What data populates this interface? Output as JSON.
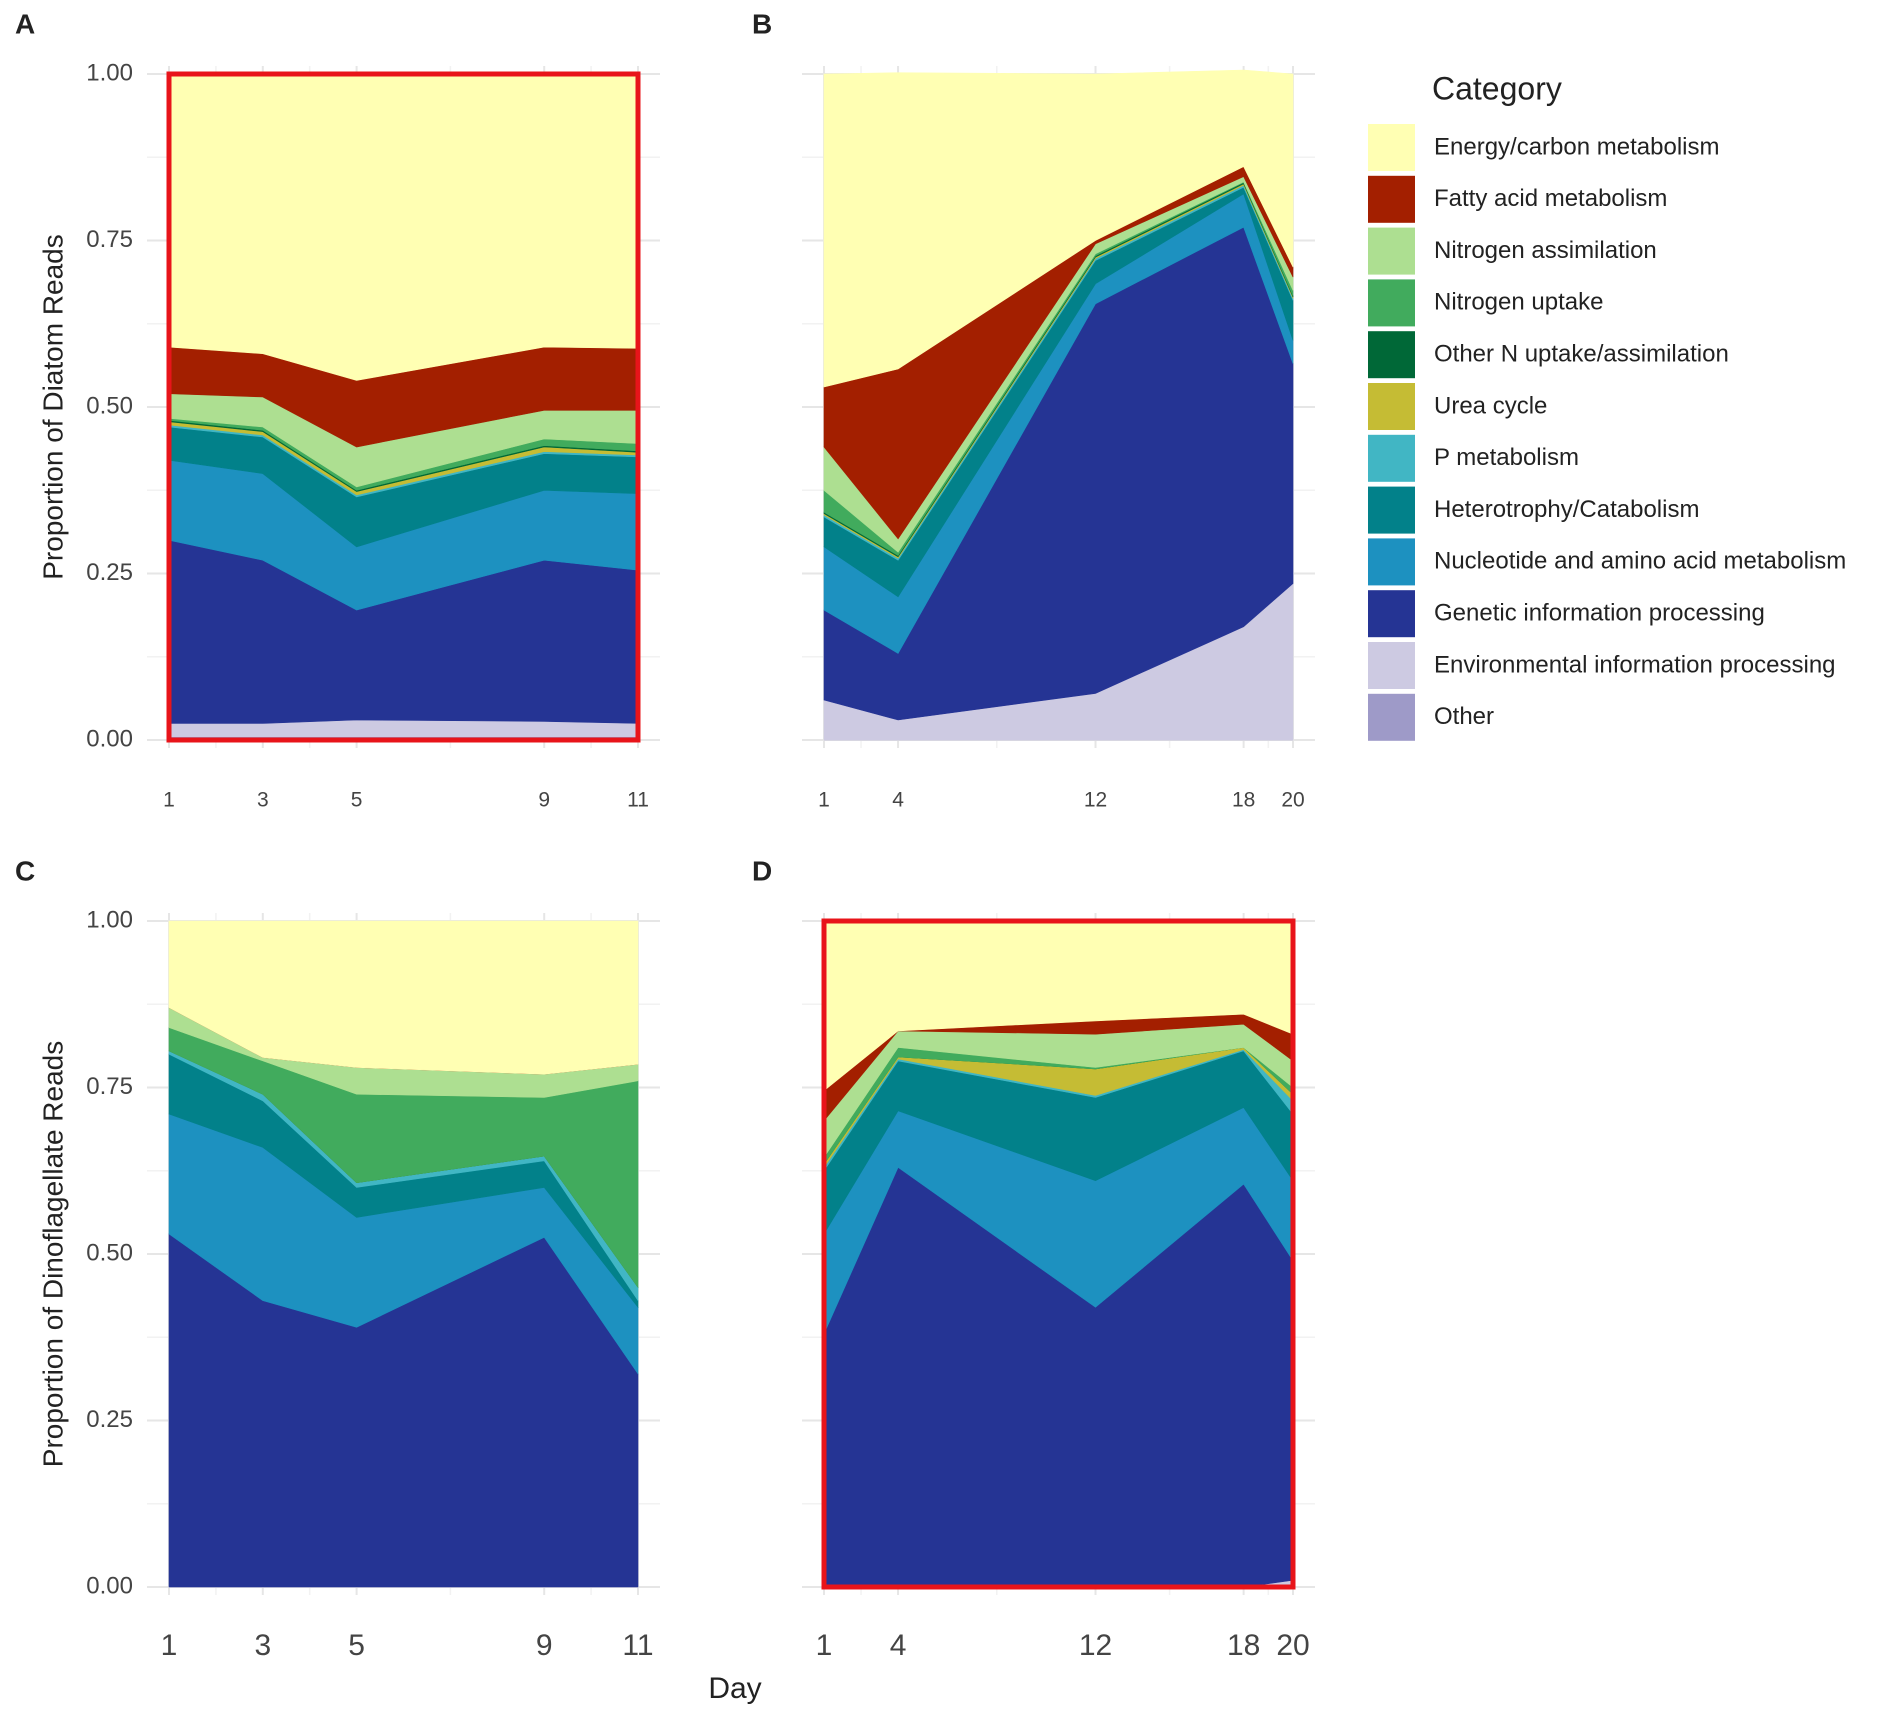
{
  "xlabel": "Day",
  "legend_title": "Category",
  "chart_data": [
    {
      "type": "area",
      "panel": "A",
      "ylabel": "Proportion of Diatom Reads",
      "x": [
        1,
        3,
        5,
        9,
        11
      ],
      "xlim": [
        1,
        11
      ],
      "xticks": [
        1,
        3,
        5,
        9,
        11
      ],
      "ylim": [
        0,
        1
      ],
      "yticks": [
        {
          "value": 0,
          "label": "0.00"
        },
        {
          "value": 0.25,
          "label": "0.25"
        },
        {
          "value": 0.5,
          "label": "0.50"
        },
        {
          "value": 0.75,
          "label": "0.75"
        },
        {
          "value": 1,
          "label": "1.00"
        }
      ],
      "show_yticklabels": true,
      "highlight": true,
      "highlight_color": "#e8141a",
      "grid": true,
      "series": [
        {
          "name": "Other",
          "color": "#9e9ac8",
          "values": [
            0.005,
            0.005,
            0.005,
            0.005,
            0.005
          ]
        },
        {
          "name": "Environmental information processing",
          "color": "#cdcae2",
          "values": [
            0.02,
            0.02,
            0.025,
            0.023,
            0.02
          ]
        },
        {
          "name": "Genetic information processing",
          "color": "#253494",
          "values": [
            0.275,
            0.245,
            0.165,
            0.242,
            0.23
          ]
        },
        {
          "name": "Nucleotide and amino acid metabolism",
          "color": "#1d91c0",
          "values": [
            0.12,
            0.13,
            0.095,
            0.105,
            0.115
          ]
        },
        {
          "name": "Heterotrophy/Catabolism",
          "color": "#02818a",
          "values": [
            0.05,
            0.055,
            0.075,
            0.055,
            0.055
          ]
        },
        {
          "name": "P metabolism",
          "color": "#41b6c4",
          "values": [
            0.003,
            0.003,
            0.003,
            0.003,
            0.003
          ]
        },
        {
          "name": "Urea cycle",
          "color": "#c5bc34",
          "values": [
            0.005,
            0.005,
            0.005,
            0.007,
            0.004
          ]
        },
        {
          "name": "Other N uptake/assimilation",
          "color": "#006837",
          "values": [
            0.002,
            0.002,
            0.002,
            0.002,
            0.002
          ]
        },
        {
          "name": "Nitrogen uptake",
          "color": "#41ab5d",
          "values": [
            0.003,
            0.005,
            0.005,
            0.01,
            0.011
          ]
        },
        {
          "name": "Nitrogen assimilation",
          "color": "#addf91",
          "values": [
            0.037,
            0.045,
            0.06,
            0.043,
            0.05
          ]
        },
        {
          "name": "Fatty acid metabolism",
          "color": "#a31f00",
          "values": [
            0.07,
            0.065,
            0.1,
            0.095,
            0.093
          ]
        },
        {
          "name": "Energy/carbon metabolism",
          "color": "#ffffb3",
          "values": [
            0.41,
            0.42,
            0.46,
            0.41,
            0.412
          ]
        }
      ]
    },
    {
      "type": "area",
      "panel": "B",
      "x": [
        1,
        4,
        12,
        18,
        20
      ],
      "xlim": [
        1,
        20
      ],
      "xticks": [
        1,
        4,
        12,
        18,
        20
      ],
      "ylim": [
        0,
        1
      ],
      "yticks": [
        0,
        0.25,
        0.5,
        0.75,
        1
      ],
      "show_yticklabels": false,
      "highlight": false,
      "grid": true,
      "series": [
        {
          "name": "Other",
          "color": "#9e9ac8",
          "values": [
            0,
            0,
            0,
            0,
            0
          ]
        },
        {
          "name": "Environmental information processing",
          "color": "#cdcae2",
          "values": [
            0.06,
            0.03,
            0.07,
            0.17,
            0.235
          ]
        },
        {
          "name": "Genetic information processing",
          "color": "#253494",
          "values": [
            0.135,
            0.1,
            0.585,
            0.6,
            0.33
          ]
        },
        {
          "name": "Nucleotide and amino acid metabolism",
          "color": "#1d91c0",
          "values": [
            0.095,
            0.085,
            0.03,
            0.05,
            0.035
          ]
        },
        {
          "name": "Heterotrophy/Catabolism",
          "color": "#02818a",
          "values": [
            0.045,
            0.055,
            0.035,
            0.01,
            0.06
          ]
        },
        {
          "name": "P metabolism",
          "color": "#41b6c4",
          "values": [
            0.003,
            0.003,
            0.003,
            0.003,
            0.003
          ]
        },
        {
          "name": "Urea cycle",
          "color": "#c5bc34",
          "values": [
            0.002,
            0.002,
            0.002,
            0.002,
            0.002
          ]
        },
        {
          "name": "Other N uptake/assimilation",
          "color": "#006837",
          "values": [
            0.002,
            0.002,
            0.002,
            0.002,
            0.002
          ]
        },
        {
          "name": "Nitrogen uptake",
          "color": "#41ab5d",
          "values": [
            0.033,
            0.005,
            0.003,
            0.001,
            0.008
          ]
        },
        {
          "name": "Nitrogen assimilation",
          "color": "#addf91",
          "values": [
            0.065,
            0.02,
            0.015,
            0.008,
            0.02
          ]
        },
        {
          "name": "Fatty acid metabolism",
          "color": "#a31f00",
          "values": [
            0.09,
            0.255,
            0.005,
            0.015,
            0.015
          ]
        },
        {
          "name": "Energy/carbon metabolism",
          "color": "#ffffb3",
          "values": [
            0.47,
            0.445,
            0.25,
            0.145,
            0.29
          ]
        }
      ]
    },
    {
      "type": "area",
      "panel": "C",
      "ylabel": "Proportion of Dinoflagellate Reads",
      "x": [
        1,
        3,
        5,
        9,
        11
      ],
      "xlim": [
        1,
        11
      ],
      "xticks": [
        1,
        3,
        5,
        9,
        11
      ],
      "ylim": [
        0,
        1
      ],
      "yticks": [
        {
          "value": 0,
          "label": "0.00"
        },
        {
          "value": 0.25,
          "label": "0.25"
        },
        {
          "value": 0.5,
          "label": "0.50"
        },
        {
          "value": 0.75,
          "label": "0.75"
        },
        {
          "value": 1,
          "label": "1.00"
        }
      ],
      "show_yticklabels": true,
      "highlight": false,
      "grid": true,
      "series": [
        {
          "name": "Other",
          "color": "#9e9ac8",
          "values": [
            0,
            0,
            0,
            0,
            0
          ]
        },
        {
          "name": "Environmental information processing",
          "color": "#cdcae2",
          "values": [
            0,
            0,
            0,
            0,
            0
          ]
        },
        {
          "name": "Genetic information processing",
          "color": "#253494",
          "values": [
            0.53,
            0.43,
            0.39,
            0.525,
            0.32
          ]
        },
        {
          "name": "Nucleotide and amino acid metabolism",
          "color": "#1d91c0",
          "values": [
            0.18,
            0.23,
            0.165,
            0.075,
            0.1
          ]
        },
        {
          "name": "Heterotrophy/Catabolism",
          "color": "#02818a",
          "values": [
            0.09,
            0.07,
            0.045,
            0.04,
            0.01
          ]
        },
        {
          "name": "P metabolism",
          "color": "#41b6c4",
          "values": [
            0.005,
            0.01,
            0.007,
            0.007,
            0.02
          ]
        },
        {
          "name": "Urea cycle",
          "color": "#c5bc34",
          "values": [
            0,
            0,
            0,
            0,
            0
          ]
        },
        {
          "name": "Other N uptake/assimilation",
          "color": "#006837",
          "values": [
            0,
            0,
            0,
            0,
            0
          ]
        },
        {
          "name": "Nitrogen uptake",
          "color": "#41ab5d",
          "values": [
            0.035,
            0.05,
            0.133,
            0.088,
            0.31
          ]
        },
        {
          "name": "Nitrogen assimilation",
          "color": "#addf91",
          "values": [
            0.03,
            0.005,
            0.04,
            0.035,
            0.025
          ]
        },
        {
          "name": "Fatty acid metabolism",
          "color": "#a31f00",
          "values": [
            0,
            0,
            0,
            0,
            0
          ]
        },
        {
          "name": "Energy/carbon metabolism",
          "color": "#ffffb3",
          "values": [
            0.13,
            0.205,
            0.22,
            0.23,
            0.215
          ]
        }
      ]
    },
    {
      "type": "area",
      "panel": "D",
      "x": [
        1,
        4,
        12,
        18,
        20
      ],
      "xlim": [
        1,
        20
      ],
      "xticks": [
        1,
        4,
        12,
        18,
        20
      ],
      "ylim": [
        0,
        1
      ],
      "yticks": [
        0,
        0.25,
        0.5,
        0.75,
        1
      ],
      "show_yticklabels": false,
      "highlight": true,
      "highlight_color": "#e8141a",
      "grid": true,
      "series": [
        {
          "name": "Other",
          "color": "#9e9ac8",
          "values": [
            0,
            0,
            0,
            0,
            0
          ]
        },
        {
          "name": "Environmental information processing",
          "color": "#cdcae2",
          "values": [
            0,
            0,
            0,
            0,
            0.01
          ]
        },
        {
          "name": "Genetic information processing",
          "color": "#253494",
          "values": [
            0.38,
            0.63,
            0.42,
            0.605,
            0.48
          ]
        },
        {
          "name": "Nucleotide and amino acid metabolism",
          "color": "#1d91c0",
          "values": [
            0.15,
            0.085,
            0.19,
            0.115,
            0.12
          ]
        },
        {
          "name": "Heterotrophy/Catabolism",
          "color": "#02818a",
          "values": [
            0.095,
            0.075,
            0.125,
            0.085,
            0.1
          ]
        },
        {
          "name": "P metabolism",
          "color": "#41b6c4",
          "values": [
            0.005,
            0.003,
            0.003,
            0.002,
            0.02
          ]
        },
        {
          "name": "Urea cycle",
          "color": "#c5bc34",
          "values": [
            0.005,
            0.003,
            0.04,
            0.003,
            0.01
          ]
        },
        {
          "name": "Other N uptake/assimilation",
          "color": "#006837",
          "values": [
            0,
            0,
            0,
            0,
            0
          ]
        },
        {
          "name": "Nitrogen uptake",
          "color": "#41ab5d",
          "values": [
            0.01,
            0.014,
            0.002,
            0,
            0.01
          ]
        },
        {
          "name": "Nitrogen assimilation",
          "color": "#addf91",
          "values": [
            0.055,
            0.025,
            0.05,
            0.035,
            0.04
          ]
        },
        {
          "name": "Fatty acid metabolism",
          "color": "#a31f00",
          "values": [
            0.045,
            0,
            0.02,
            0.015,
            0.04
          ]
        },
        {
          "name": "Energy/carbon metabolism",
          "color": "#ffffb3",
          "values": [
            0.255,
            0.165,
            0.15,
            0.14,
            0.17
          ]
        }
      ]
    }
  ]
}
